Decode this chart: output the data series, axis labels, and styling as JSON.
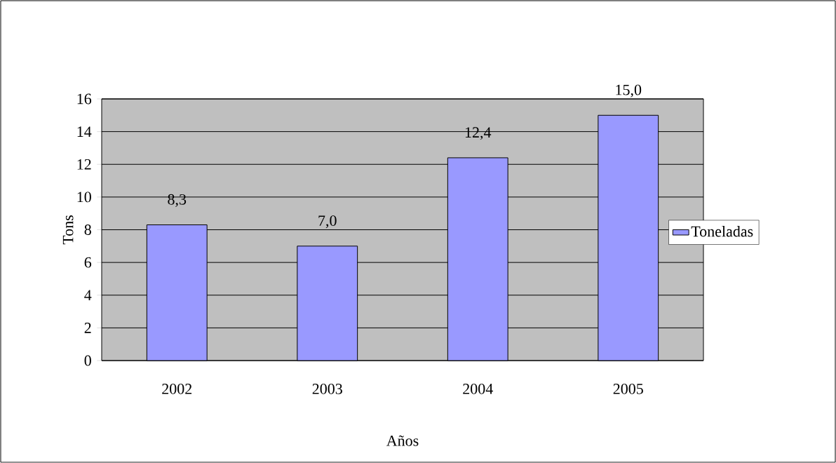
{
  "chart_data": {
    "type": "bar",
    "xlabel": "Años",
    "ylabel": "Tons",
    "categories": [
      "2002",
      "2003",
      "2004",
      "2005"
    ],
    "series": [
      {
        "name": "Toneladas",
        "color": "#9999ff",
        "values": [
          8.3,
          7.0,
          12.4,
          15.0
        ],
        "value_labels": [
          "8,3",
          "7,0",
          "12,4",
          "15,0"
        ]
      }
    ],
    "ylim": [
      0,
      16
    ],
    "yticks": [
      0,
      2,
      4,
      6,
      8,
      10,
      12,
      14,
      16
    ],
    "grid": "y",
    "legend": "right"
  }
}
